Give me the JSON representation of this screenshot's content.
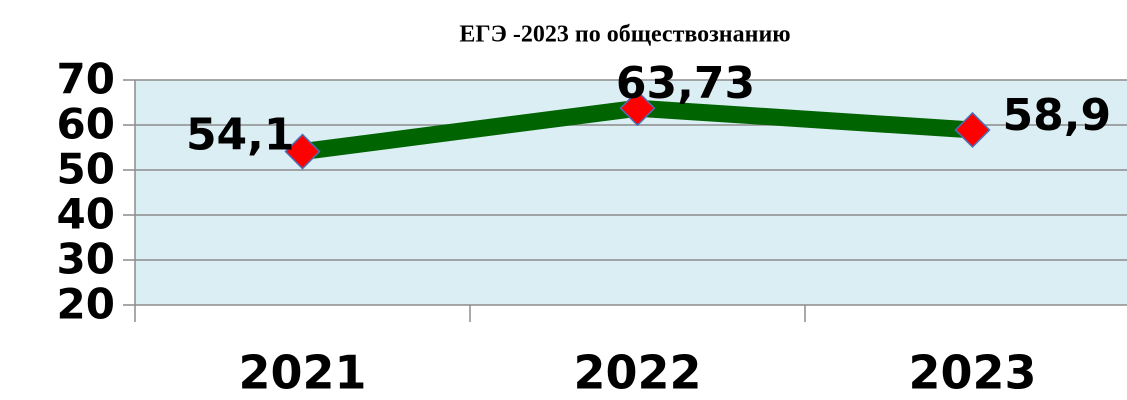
{
  "chart_data": {
    "type": "line",
    "title": "ЕГЭ -2023 по обществознанию",
    "categories": [
      "2021",
      "2022",
      "2023"
    ],
    "series": [
      {
        "color": "#006400",
        "marker_color": "#ff0000",
        "values": [
          54.1,
          63.73,
          58.9
        ],
        "value_labels": [
          "54,1",
          "63,73",
          "58,9"
        ]
      }
    ],
    "ylim": [
      20,
      70
    ],
    "yticks": [
      20,
      30,
      40,
      50,
      60,
      70
    ],
    "grid": true
  }
}
